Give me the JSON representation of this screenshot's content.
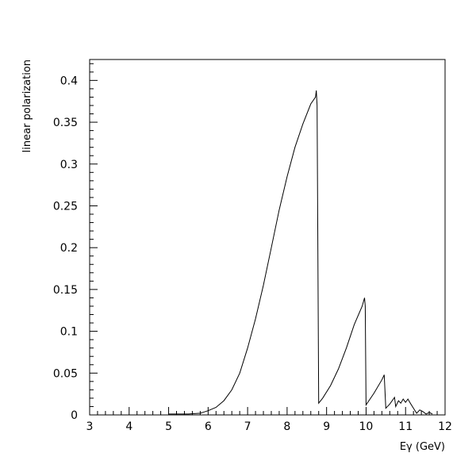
{
  "chart_data": {
    "type": "line",
    "title": "",
    "xlabel": "Eγ (GeV)",
    "ylabel": "linear polarization",
    "xlim": [
      3,
      12
    ],
    "ylim": [
      0,
      0.425
    ],
    "x_ticks": [
      3,
      4,
      5,
      6,
      7,
      8,
      9,
      10,
      11,
      12
    ],
    "x_tick_labels": [
      "3",
      "4",
      "5",
      "6",
      "7",
      "8",
      "9",
      "10",
      "11",
      "12"
    ],
    "y_ticks": [
      0,
      0.05,
      0.1,
      0.15,
      0.2,
      0.25,
      0.3,
      0.35,
      0.4
    ],
    "y_tick_labels": [
      "0",
      "0.05",
      "0.1",
      "0.15",
      "0.2",
      "0.25",
      "0.3",
      "0.35",
      "0.4"
    ],
    "grid": false,
    "legend": "none",
    "series": [
      {
        "color": "#000000",
        "points": [
          [
            5.0,
            0.001
          ],
          [
            5.5,
            0.001
          ],
          [
            5.8,
            0.002
          ],
          [
            6.0,
            0.005
          ],
          [
            6.2,
            0.009
          ],
          [
            6.4,
            0.017
          ],
          [
            6.6,
            0.03
          ],
          [
            6.8,
            0.05
          ],
          [
            7.0,
            0.08
          ],
          [
            7.2,
            0.115
          ],
          [
            7.4,
            0.155
          ],
          [
            7.6,
            0.2
          ],
          [
            7.8,
            0.245
          ],
          [
            8.0,
            0.285
          ],
          [
            8.2,
            0.32
          ],
          [
            8.4,
            0.348
          ],
          [
            8.6,
            0.372
          ],
          [
            8.72,
            0.38
          ],
          [
            8.74,
            0.388
          ],
          [
            8.76,
            0.37
          ],
          [
            8.8,
            0.014
          ],
          [
            8.9,
            0.02
          ],
          [
            9.1,
            0.035
          ],
          [
            9.3,
            0.055
          ],
          [
            9.5,
            0.08
          ],
          [
            9.7,
            0.108
          ],
          [
            9.9,
            0.13
          ],
          [
            9.96,
            0.14
          ],
          [
            9.98,
            0.13
          ],
          [
            10.0,
            0.012
          ],
          [
            10.2,
            0.026
          ],
          [
            10.4,
            0.042
          ],
          [
            10.46,
            0.048
          ],
          [
            10.5,
            0.008
          ],
          [
            10.6,
            0.013
          ],
          [
            10.72,
            0.021
          ],
          [
            10.75,
            0.01
          ],
          [
            10.82,
            0.017
          ],
          [
            10.88,
            0.014
          ],
          [
            10.94,
            0.019
          ],
          [
            11.0,
            0.015
          ],
          [
            11.06,
            0.019
          ],
          [
            11.12,
            0.014
          ],
          [
            11.2,
            0.008
          ],
          [
            11.28,
            0.002
          ],
          [
            11.36,
            0.006
          ],
          [
            11.44,
            0.004
          ],
          [
            11.52,
            0.001
          ],
          [
            11.6,
            0.003
          ],
          [
            11.68,
            0.001
          ]
        ]
      }
    ]
  }
}
